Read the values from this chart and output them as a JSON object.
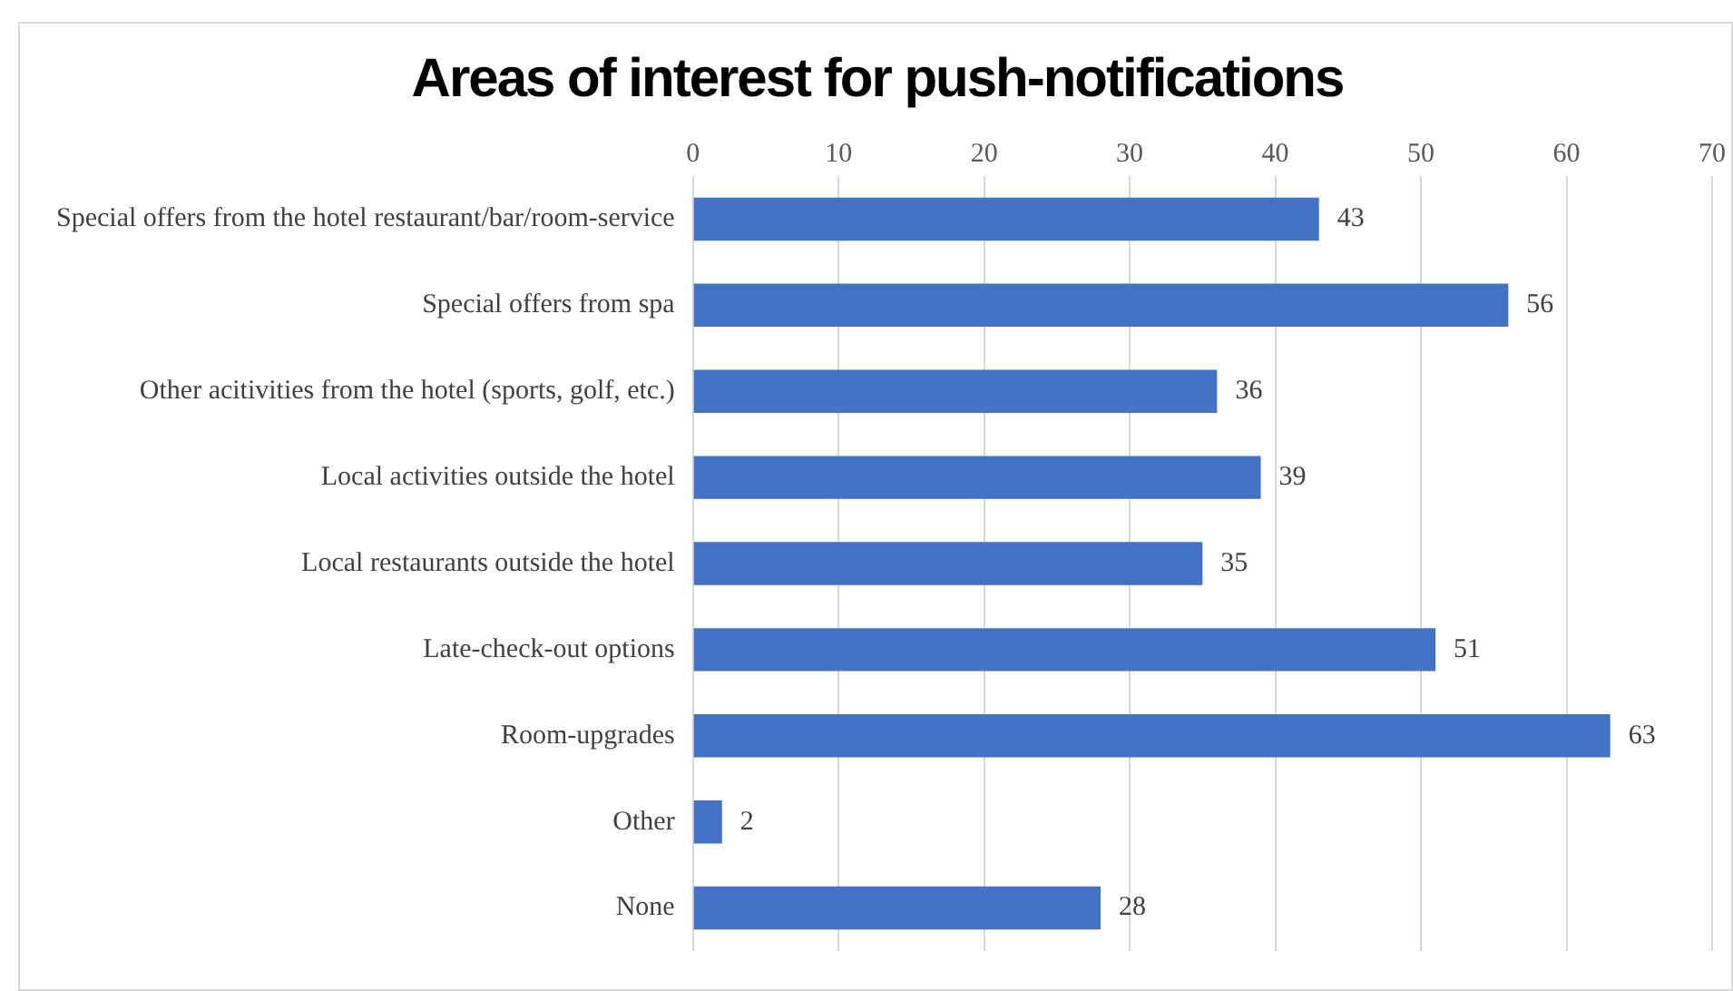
{
  "chart_data": {
    "type": "bar",
    "orientation": "horizontal",
    "title": "Areas of interest for push-notifications",
    "categories": [
      "Special offers from the hotel restaurant/bar/room-service",
      "Special offers from spa",
      "Other acitivities from the hotel (sports, golf, etc.)",
      "Local activities outside the hotel",
      "Local restaurants outside the hotel",
      "Late-check-out options",
      "Room-upgrades",
      "Other",
      "None"
    ],
    "values": [
      43,
      56,
      36,
      39,
      35,
      51,
      63,
      2,
      28
    ],
    "color": "#4472c4",
    "xlim": [
      0,
      70
    ],
    "xticks": [
      0,
      10,
      20,
      30,
      40,
      50,
      60,
      70
    ],
    "grid": "x",
    "data_labels": true,
    "legend": false
  }
}
